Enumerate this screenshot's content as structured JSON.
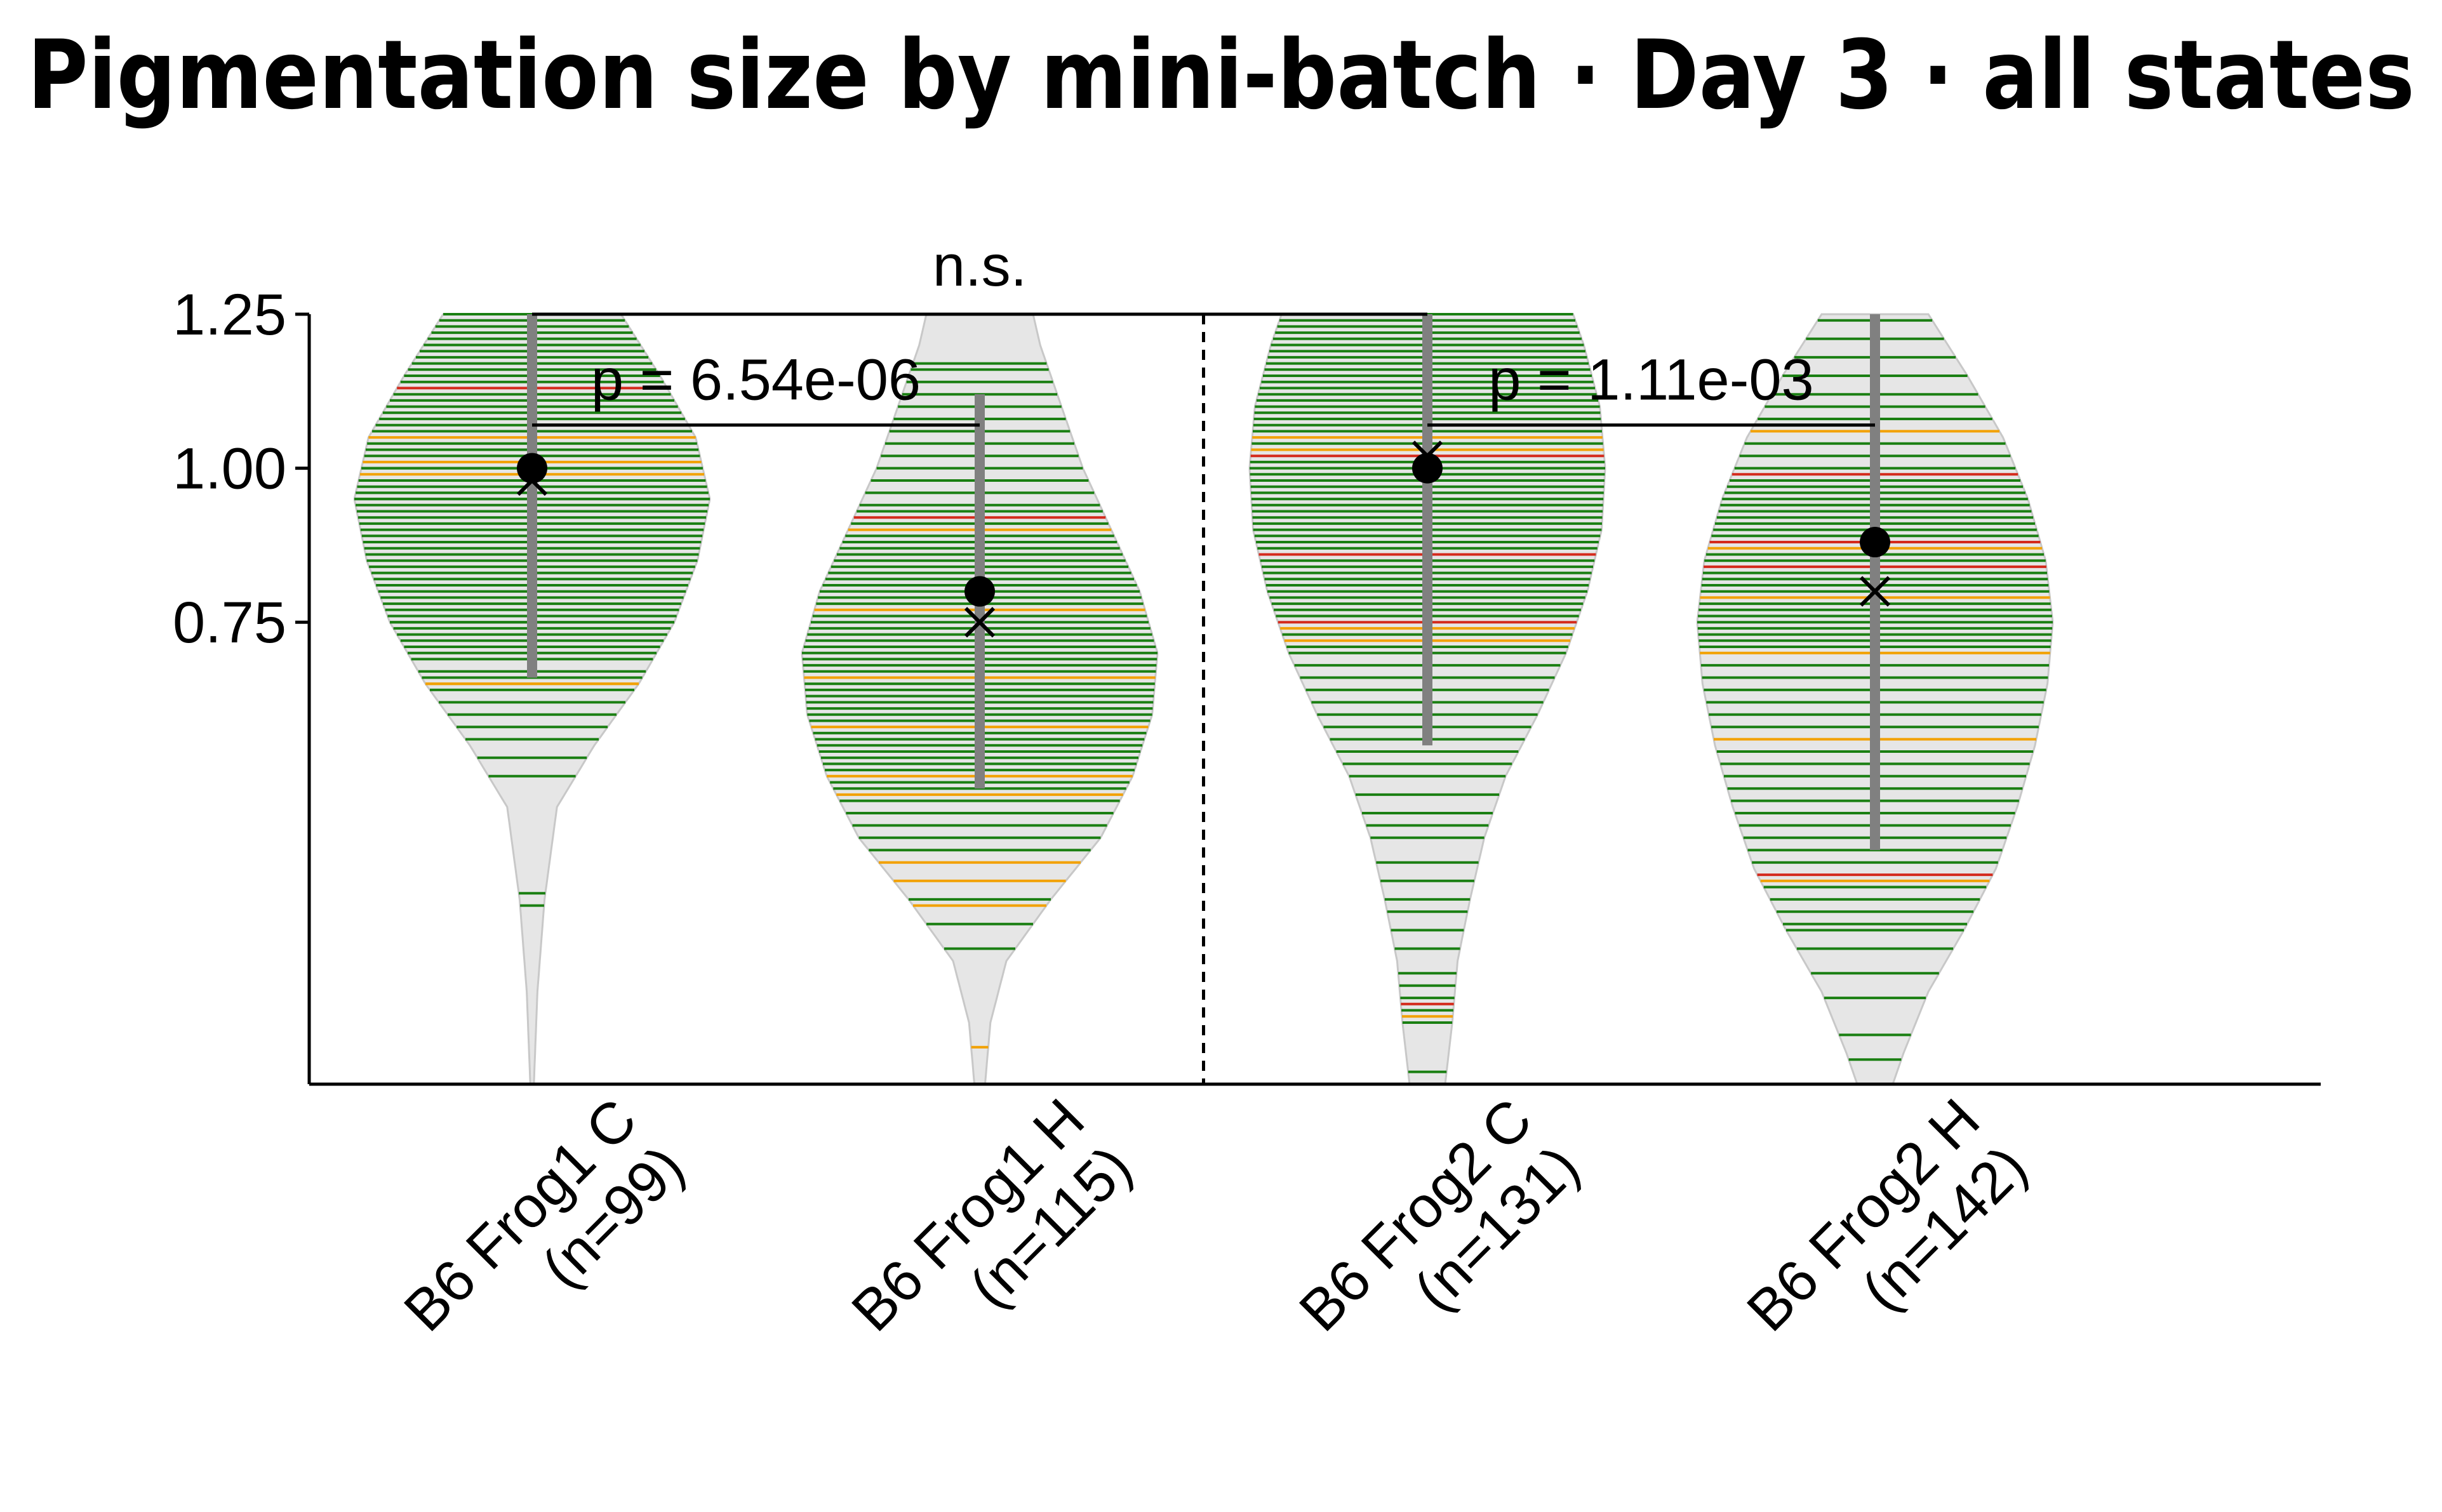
{
  "chart_data": {
    "type": "violin",
    "title": "Pigmentation size by mini-batch · Day 3 · all states",
    "xlabel": "",
    "ylabel": "",
    "ylim": [
      0.0,
      1.25
    ],
    "yticks": [
      {
        "value": 0.75,
        "label": "0.75"
      },
      {
        "value": 1.0,
        "label": "1.00"
      },
      {
        "value": 1.25,
        "label": "1.25"
      }
    ],
    "grid": false,
    "legend": "none",
    "colors": {
      "violin_fill": "#e6e6e6",
      "violin_edge": "#c8c8c8",
      "line_green": "#1a7f12",
      "line_orange": "#f2a100",
      "line_red": "#d42a1c",
      "iqr_bar": "#808080",
      "mean_marker": "#000000"
    },
    "groups": [
      {
        "label_line1": "B6 Frog1 C",
        "label_line2": "(n=99)",
        "n": 99,
        "mean": 1.0,
        "median": 0.98,
        "whisker": [
          0.66,
          1.25
        ],
        "shape": [
          [
            0.0,
            0.01
          ],
          [
            0.15,
            0.03
          ],
          [
            0.3,
            0.07
          ],
          [
            0.45,
            0.14
          ],
          [
            0.55,
            0.35
          ],
          [
            0.65,
            0.6
          ],
          [
            0.75,
            0.8
          ],
          [
            0.85,
            0.93
          ],
          [
            0.95,
            1.0
          ],
          [
            1.05,
            0.92
          ],
          [
            1.15,
            0.72
          ],
          [
            1.25,
            0.5
          ]
        ],
        "values": [
          0.31,
          0.29,
          0.5,
          0.53,
          0.56,
          0.58,
          0.6,
          0.62,
          0.64,
          0.65,
          0.65,
          0.66,
          0.67,
          0.69,
          0.7,
          0.71,
          0.72,
          0.73,
          0.74,
          0.75,
          0.75,
          0.76,
          0.77,
          0.78,
          0.79,
          0.8,
          0.81,
          0.82,
          0.83,
          0.84,
          0.85,
          0.86,
          0.87,
          0.88,
          0.89,
          0.9,
          0.91,
          0.92,
          0.93,
          0.94,
          0.95,
          0.95,
          0.96,
          0.97,
          0.98,
          0.99,
          1.0,
          1.0,
          1.01,
          1.02,
          1.03,
          1.04,
          1.05,
          1.06,
          1.07,
          1.08,
          1.09,
          1.1,
          1.11,
          1.12,
          1.13,
          1.14,
          1.15,
          1.16,
          1.17,
          1.18,
          1.19,
          1.2,
          1.21,
          1.22,
          1.23,
          1.24,
          1.25,
          1.25
        ],
        "orange": [
          0.65,
          0.99,
          1.01,
          1.05
        ],
        "red": [
          1.13
        ]
      },
      {
        "label_line1": "B6 Frog1 H",
        "label_line2": "(n=115)",
        "n": 115,
        "mean": 0.8,
        "median": 0.75,
        "whisker": [
          0.48,
          1.12
        ],
        "shape": [
          [
            0.0,
            0.03
          ],
          [
            0.1,
            0.06
          ],
          [
            0.2,
            0.15
          ],
          [
            0.3,
            0.4
          ],
          [
            0.4,
            0.68
          ],
          [
            0.5,
            0.86
          ],
          [
            0.6,
            0.97
          ],
          [
            0.7,
            1.0
          ],
          [
            0.8,
            0.9
          ],
          [
            0.9,
            0.74
          ],
          [
            1.0,
            0.58
          ],
          [
            1.1,
            0.46
          ],
          [
            1.2,
            0.34
          ],
          [
            1.25,
            0.3
          ]
        ],
        "values": [
          0.06,
          0.22,
          0.26,
          0.3,
          0.33,
          0.36,
          0.38,
          0.4,
          0.42,
          0.44,
          0.46,
          0.47,
          0.48,
          0.49,
          0.5,
          0.51,
          0.52,
          0.53,
          0.54,
          0.55,
          0.56,
          0.57,
          0.58,
          0.59,
          0.6,
          0.61,
          0.62,
          0.63,
          0.64,
          0.65,
          0.66,
          0.67,
          0.68,
          0.69,
          0.7,
          0.71,
          0.72,
          0.73,
          0.74,
          0.75,
          0.76,
          0.77,
          0.78,
          0.79,
          0.8,
          0.81,
          0.82,
          0.83,
          0.84,
          0.85,
          0.86,
          0.87,
          0.88,
          0.89,
          0.9,
          0.91,
          0.92,
          0.93,
          0.94,
          0.96,
          0.98,
          1.0,
          1.02,
          1.04,
          1.06,
          1.08,
          1.1,
          1.12,
          1.14,
          1.16,
          1.17
        ],
        "orange": [
          0.06,
          0.29,
          0.33,
          0.36,
          0.47,
          0.5,
          0.58,
          0.66,
          0.77,
          0.9
        ],
        "red": [
          0.92
        ]
      },
      {
        "label_line1": "B6 Frog2 C",
        "label_line2": "(n=131)",
        "n": 131,
        "mean": 1.0,
        "median": 1.02,
        "whisker": [
          0.55,
          1.25
        ],
        "shape": [
          [
            0.0,
            0.1
          ],
          [
            0.1,
            0.14
          ],
          [
            0.2,
            0.17
          ],
          [
            0.3,
            0.24
          ],
          [
            0.4,
            0.32
          ],
          [
            0.5,
            0.44
          ],
          [
            0.6,
            0.62
          ],
          [
            0.7,
            0.78
          ],
          [
            0.8,
            0.9
          ],
          [
            0.9,
            0.98
          ],
          [
            1.0,
            1.0
          ],
          [
            1.1,
            0.97
          ],
          [
            1.2,
            0.88
          ],
          [
            1.25,
            0.82
          ]
        ],
        "values": [
          0.02,
          0.1,
          0.12,
          0.14,
          0.16,
          0.18,
          0.22,
          0.25,
          0.28,
          0.3,
          0.33,
          0.36,
          0.4,
          0.42,
          0.44,
          0.47,
          0.5,
          0.52,
          0.54,
          0.56,
          0.58,
          0.6,
          0.62,
          0.64,
          0.66,
          0.68,
          0.7,
          0.71,
          0.72,
          0.73,
          0.74,
          0.75,
          0.76,
          0.77,
          0.78,
          0.79,
          0.8,
          0.81,
          0.82,
          0.83,
          0.84,
          0.85,
          0.86,
          0.87,
          0.88,
          0.89,
          0.9,
          0.91,
          0.92,
          0.93,
          0.94,
          0.95,
          0.96,
          0.97,
          0.98,
          0.99,
          1.0,
          1.01,
          1.02,
          1.03,
          1.04,
          1.05,
          1.06,
          1.07,
          1.08,
          1.09,
          1.1,
          1.11,
          1.12,
          1.13,
          1.14,
          1.15,
          1.16,
          1.17,
          1.18,
          1.19,
          1.2,
          1.21,
          1.22,
          1.23,
          1.24,
          1.25
        ],
        "orange": [
          0.11,
          0.72,
          0.74,
          1.03,
          1.05
        ],
        "red": [
          0.13,
          0.75,
          0.86,
          1.02
        ]
      },
      {
        "label_line1": "B6 Frog2 H",
        "label_line2": "(n=142)",
        "n": 142,
        "mean": 0.88,
        "median": 0.8,
        "whisker": [
          0.38,
          1.25
        ],
        "shape": [
          [
            0.0,
            0.1
          ],
          [
            0.05,
            0.16
          ],
          [
            0.15,
            0.3
          ],
          [
            0.25,
            0.5
          ],
          [
            0.35,
            0.68
          ],
          [
            0.45,
            0.8
          ],
          [
            0.55,
            0.9
          ],
          [
            0.65,
            0.97
          ],
          [
            0.75,
            1.0
          ],
          [
            0.85,
            0.96
          ],
          [
            0.95,
            0.86
          ],
          [
            1.05,
            0.72
          ],
          [
            1.15,
            0.52
          ],
          [
            1.25,
            0.3
          ]
        ],
        "values": [
          0.04,
          0.08,
          0.14,
          0.18,
          0.22,
          0.25,
          0.26,
          0.28,
          0.3,
          0.32,
          0.34,
          0.36,
          0.38,
          0.4,
          0.42,
          0.44,
          0.46,
          0.48,
          0.5,
          0.52,
          0.54,
          0.56,
          0.58,
          0.6,
          0.62,
          0.64,
          0.66,
          0.68,
          0.7,
          0.71,
          0.72,
          0.73,
          0.74,
          0.75,
          0.76,
          0.77,
          0.78,
          0.79,
          0.8,
          0.81,
          0.82,
          0.83,
          0.84,
          0.85,
          0.86,
          0.87,
          0.88,
          0.89,
          0.9,
          0.91,
          0.92,
          0.93,
          0.94,
          0.95,
          0.96,
          0.97,
          0.98,
          1.0,
          1.02,
          1.04,
          1.06,
          1.08,
          1.1,
          1.12,
          1.15,
          1.18,
          1.21,
          1.24
        ],
        "orange": [
          0.33,
          0.56,
          0.7,
          0.79,
          0.87,
          1.06
        ],
        "red": [
          0.34,
          0.84,
          0.88,
          0.99
        ]
      }
    ],
    "annotations": [
      {
        "text": "p = 6.54e-06",
        "from_group": 0,
        "to_group": 1,
        "y": 1.07
      },
      {
        "text": "p = 1.11e-03",
        "from_group": 2,
        "to_group": 3,
        "y": 1.07
      },
      {
        "text": "n.s.",
        "from_group": 0,
        "to_group": 2,
        "y": 1.25
      }
    ],
    "separator_after_group": 1
  }
}
